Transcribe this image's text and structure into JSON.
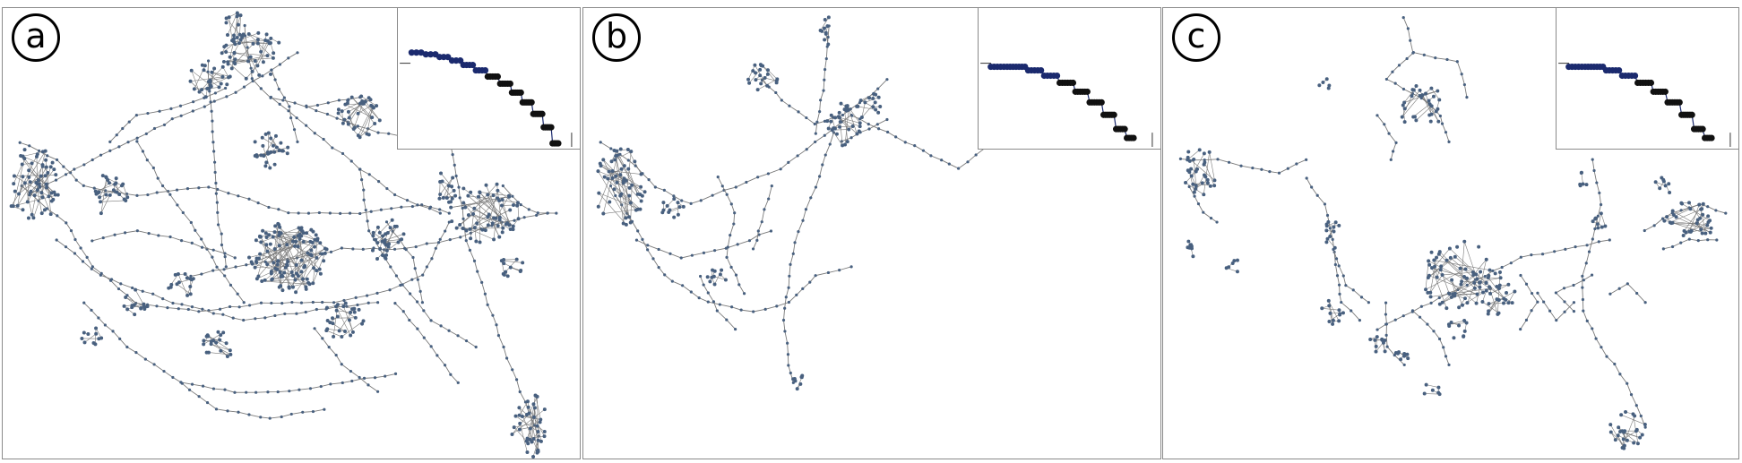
{
  "panels": [
    {
      "label": "a"
    },
    {
      "label": "b"
    },
    {
      "label": "c"
    }
  ],
  "colors": {
    "node": "#48607f",
    "edge": "#7a7a7a",
    "inset_node": "#1b2a6e",
    "inset_dark": "#111111",
    "frame": "#8a8a8a"
  }
}
